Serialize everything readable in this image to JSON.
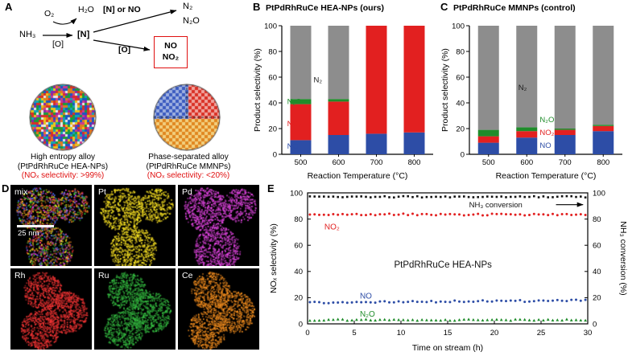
{
  "panels": {
    "A": {
      "label": "A",
      "scheme": {
        "reactant": "NH₃",
        "oxidant": "O₂",
        "water": "H₂O",
        "under_arrow": "[O]",
        "intermediate": "[N]",
        "branch_top_label": "[N] or NO",
        "branch_bottom_label": "[O]",
        "product_n2": "N₂",
        "product_n2o": "N₂O",
        "boxed_no": "NO",
        "boxed_no2": "NO₂"
      },
      "hea": {
        "caption_line1": "High entropy alloy",
        "caption_line2": "(PtPdRhRuCe HEA-NPs)",
        "selectivity_note": "(NOₓ selectivity: >99%)",
        "palette": [
          "#d93025",
          "#1a56c4",
          "#e8c619",
          "#199c3a",
          "#8e24aa",
          "#e07b1f",
          "#12a5b5",
          "#cc3b8f",
          "#e8e8e8"
        ]
      },
      "mmnp": {
        "caption_line1": "Phase-separated alloy",
        "caption_line2": "(PtPdRhRuCe MMNPs)",
        "selectivity_note": "(NOₓ selectivity: <20%)",
        "phase_colors": {
          "top_left": [
            "#3b5bc0",
            "#9fb1e0"
          ],
          "top_right": [
            "#d93025",
            "#f0a49e"
          ],
          "bottom": [
            "#e0861f",
            "#f2cf7e"
          ]
        }
      },
      "note_color": "#e01010"
    },
    "D": {
      "label": "D",
      "scalebar_text": "25 nm",
      "tiles": [
        {
          "name": "mix",
          "palette": [
            "#e03030",
            "#e8d020",
            "#d040d0",
            "#30b030",
            "#e08020",
            "#4868e8"
          ]
        },
        {
          "name": "Pt",
          "palette": [
            "#e8d020"
          ]
        },
        {
          "name": "Pd",
          "palette": [
            "#cf3fcf"
          ]
        },
        {
          "name": "Rh",
          "palette": [
            "#e23030"
          ]
        },
        {
          "name": "Ru",
          "palette": [
            "#2fa83a"
          ]
        },
        {
          "name": "Ce",
          "palette": [
            "#e0821c"
          ]
        }
      ]
    }
  },
  "chart_data": [
    {
      "id": "B",
      "panel_label": "B",
      "type": "bar",
      "stacked": true,
      "title": "PtPdRhRuCe HEA-NPs (ours)",
      "categories": [
        "500",
        "600",
        "700",
        "800"
      ],
      "series": [
        {
          "name": "NO",
          "color": "#2d4da6",
          "values": [
            11,
            15,
            16,
            17
          ]
        },
        {
          "name": "NO₂",
          "color": "#e22020",
          "values": [
            28,
            26,
            84,
            83
          ]
        },
        {
          "name": "N₂O",
          "color": "#1f8c2a",
          "values": [
            4,
            2,
            0,
            0
          ]
        },
        {
          "name": "N₂",
          "color": "#8d8d8d",
          "values": [
            57,
            57,
            0,
            0
          ]
        }
      ],
      "xlabel": "Reaction Temperature (°C)",
      "ylabel": "Product selectivity (%)",
      "ylim": [
        0,
        100
      ],
      "yticks": [
        0,
        20,
        40,
        60,
        80,
        100
      ],
      "annotations": [
        {
          "text": "N₂",
          "color": "#1a1a1a",
          "fx": 0.21,
          "v": 58,
          "anchor": "start"
        },
        {
          "text": "N₂O",
          "color": "#1f8c2a",
          "fx": 0.035,
          "v": 41,
          "anchor": "start"
        },
        {
          "text": "NO₂",
          "color": "#e22020",
          "fx": 0.035,
          "v": 24,
          "anchor": "start"
        },
        {
          "text": "NO",
          "color": "#2d4da6",
          "fx": 0.035,
          "v": 6.5,
          "anchor": "start"
        }
      ]
    },
    {
      "id": "C",
      "panel_label": "C",
      "type": "bar",
      "stacked": true,
      "title": "PtPdRhRuCe MMNPs (control)",
      "categories": [
        "500",
        "600",
        "700",
        "800"
      ],
      "series": [
        {
          "name": "NO",
          "color": "#2d4da6",
          "values": [
            9,
            13,
            15,
            18
          ]
        },
        {
          "name": "NO₂",
          "color": "#e22020",
          "values": [
            5,
            5,
            4,
            4
          ]
        },
        {
          "name": "N₂O",
          "color": "#1f8c2a",
          "values": [
            5,
            3,
            1,
            1
          ]
        },
        {
          "name": "N₂",
          "color": "#8d8d8d",
          "values": [
            81,
            79,
            80,
            77
          ]
        }
      ],
      "xlabel": "Reaction Temperature (°C)",
      "ylabel": "Product selectivity (%)",
      "ylim": [
        0,
        100
      ],
      "yticks": [
        0,
        20,
        40,
        60,
        80,
        100
      ],
      "annotations": [
        {
          "text": "N₂",
          "color": "#1a1a1a",
          "fx": 0.32,
          "v": 52,
          "anchor": "start"
        },
        {
          "text": "N₂O",
          "color": "#1f8c2a",
          "fx": 0.46,
          "v": 27,
          "anchor": "start"
        },
        {
          "text": "NO₂",
          "color": "#e22020",
          "fx": 0.46,
          "v": 17,
          "anchor": "start"
        },
        {
          "text": "NO",
          "color": "#2d4da6",
          "fx": 0.46,
          "v": 7,
          "anchor": "start"
        }
      ]
    },
    {
      "id": "E",
      "panel_label": "E",
      "type": "scatter",
      "xlabel": "Time on stream (h)",
      "ylabel_left": "NOₓ selectivity (%)",
      "ylabel_right": "NH₃ conversion (%)",
      "xlim": [
        0,
        30
      ],
      "ylim": [
        0,
        100
      ],
      "xticks": [
        0,
        5,
        10,
        15,
        20,
        25,
        30
      ],
      "yticks": [
        0,
        20,
        40,
        60,
        80,
        100
      ],
      "sample_interval_h": 0.5,
      "series": [
        {
          "name": "NH₃ conversion",
          "axis": "right",
          "color": "#111111",
          "marker": "square",
          "mean": 97,
          "jitter": 0.5
        },
        {
          "name": "NO₂",
          "axis": "left",
          "color": "#e22020",
          "marker": "circle",
          "mean": 83.5,
          "jitter": 0.7
        },
        {
          "name": "NO",
          "axis": "left",
          "color": "#2d4da6",
          "marker": "circle",
          "mean": 17,
          "jitter": 0.7
        },
        {
          "name": "N₂O",
          "axis": "left",
          "color": "#1f8c2a",
          "marker": "triangle",
          "mean": 3,
          "jitter": 0.5
        }
      ],
      "annotations": [
        {
          "text": "NO₂",
          "color": "#e22020",
          "x": 1.8,
          "y": 74,
          "anchor": "start",
          "size": 10
        },
        {
          "text": "NO",
          "color": "#2d4da6",
          "x": 5.6,
          "y": 21.5,
          "anchor": "start",
          "size": 10
        },
        {
          "text": "N₂O",
          "color": "#1f8c2a",
          "x": 5.6,
          "y": 7.5,
          "anchor": "start",
          "size": 10
        },
        {
          "text": "NH₃ conversion",
          "color": "#111111",
          "x": 17.3,
          "y": 91,
          "anchor": "start",
          "size": 9.5
        },
        {
          "text": "PtPdRhRuCe HEA-NPs",
          "color": "#111111",
          "x": 14.5,
          "y": 45,
          "anchor": "middle",
          "size": 11.5
        }
      ],
      "arrow": {
        "x1": 26.6,
        "x2": 29.5,
        "y": 91
      }
    }
  ]
}
